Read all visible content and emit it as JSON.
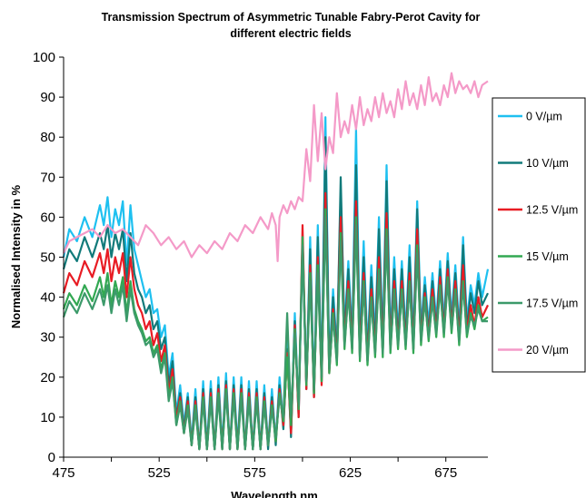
{
  "chart_data": {
    "type": "line",
    "title_line1": "Transmission Spectrum of Asymmetric Tunable Fabry-Perot Cavity for",
    "title_line2": "different electric fields",
    "xlabel": "Wavelength nm",
    "ylabel": "Normalised Intensity in %",
    "xlim": [
      475,
      697
    ],
    "ylim": [
      0,
      100
    ],
    "xticks": [
      475,
      525,
      575,
      625,
      675
    ],
    "yticks": [
      0,
      10,
      20,
      30,
      40,
      50,
      60,
      70,
      80,
      90,
      100
    ],
    "grid": false,
    "legend_position": "right",
    "series": [
      {
        "name": "0 V/µm",
        "color": "#1EC0F0",
        "x": [
          475,
          478,
          482,
          486,
          490,
          494,
          496,
          498,
          500,
          502,
          504,
          506,
          508,
          510,
          512,
          514,
          516,
          518,
          520,
          522,
          524,
          526,
          528,
          530,
          532,
          534,
          536,
          538,
          540,
          542,
          544,
          546,
          548,
          550,
          552,
          554,
          556,
          558,
          560,
          562,
          564,
          566,
          568,
          570,
          572,
          574,
          576,
          578,
          580,
          582,
          584,
          586,
          588,
          590,
          592,
          594,
          596,
          598,
          600,
          602,
          604,
          606,
          608,
          610,
          612,
          614,
          616,
          618,
          620,
          622,
          624,
          626,
          628,
          630,
          632,
          634,
          636,
          638,
          640,
          642,
          644,
          646,
          648,
          650,
          652,
          654,
          656,
          658,
          660,
          662,
          664,
          666,
          668,
          670,
          672,
          674,
          676,
          678,
          680,
          682,
          684,
          686,
          688,
          690,
          692,
          694,
          697
        ],
        "y": [
          50,
          57,
          54,
          60,
          55,
          63,
          58,
          65,
          55,
          62,
          58,
          64,
          48,
          63,
          52,
          48,
          44,
          40,
          42,
          36,
          37,
          30,
          33,
          20,
          26,
          11,
          18,
          8,
          16,
          4,
          17,
          2,
          19,
          3,
          19,
          2,
          20,
          3,
          21,
          2,
          20,
          3,
          20,
          2,
          19,
          2,
          19,
          2,
          18,
          3,
          17,
          4,
          20,
          8,
          29,
          6,
          36,
          11,
          53,
          18,
          55,
          16,
          58,
          20,
          85,
          24,
          42,
          27,
          66,
          32,
          49,
          30,
          82,
          28,
          54,
          27,
          48,
          30,
          60,
          29,
          73,
          30,
          50,
          31,
          49,
          31,
          53,
          30,
          64,
          32,
          45,
          33,
          46,
          34,
          49,
          34,
          51,
          35,
          48,
          32,
          55,
          34,
          43,
          38,
          46,
          40,
          47
        ],
        "peaks_x": [],
        "peaks_y": []
      },
      {
        "name": "10 V/µm",
        "color": "#117A7A",
        "x": [
          475,
          478,
          482,
          486,
          490,
          494,
          496,
          498,
          500,
          502,
          504,
          506,
          508,
          510,
          512,
          514,
          516,
          518,
          520,
          522,
          524,
          526,
          528,
          530,
          532,
          534,
          536,
          538,
          540,
          542,
          544,
          546,
          548,
          550,
          552,
          554,
          556,
          558,
          560,
          562,
          564,
          566,
          568,
          570,
          572,
          574,
          576,
          578,
          580,
          582,
          584,
          586,
          588,
          590,
          592,
          594,
          596,
          598,
          600,
          602,
          604,
          606,
          608,
          610,
          612,
          614,
          616,
          618,
          620,
          622,
          624,
          626,
          628,
          630,
          632,
          634,
          636,
          638,
          640,
          642,
          644,
          646,
          648,
          650,
          652,
          654,
          656,
          658,
          660,
          662,
          664,
          666,
          668,
          670,
          672,
          674,
          676,
          678,
          680,
          682,
          684,
          686,
          688,
          690,
          692,
          694,
          697
        ],
        "y": [
          47,
          52,
          49,
          55,
          50,
          56,
          52,
          58,
          50,
          56,
          52,
          57,
          44,
          56,
          46,
          42,
          40,
          36,
          38,
          32,
          34,
          27,
          30,
          18,
          24,
          10,
          16,
          7,
          15,
          3,
          15,
          2,
          17,
          2,
          17,
          2,
          18,
          2,
          19,
          2,
          18,
          2,
          18,
          2,
          17,
          2,
          17,
          2,
          16,
          2,
          15,
          3,
          18,
          7,
          27,
          5,
          34,
          10,
          55,
          17,
          52,
          15,
          55,
          19,
          80,
          22,
          40,
          25,
          70,
          30,
          47,
          28,
          73,
          26,
          50,
          25,
          45,
          28,
          57,
          27,
          69,
          28,
          47,
          29,
          47,
          29,
          50,
          28,
          62,
          30,
          43,
          31,
          44,
          32,
          47,
          32,
          49,
          33,
          46,
          30,
          53,
          32,
          41,
          36,
          44,
          38,
          41
        ]
      },
      {
        "name": "12.5 V/µm",
        "color": "#E81C24",
        "x": [
          475,
          478,
          482,
          486,
          490,
          494,
          496,
          498,
          500,
          502,
          504,
          506,
          508,
          510,
          512,
          514,
          516,
          518,
          520,
          522,
          524,
          526,
          528,
          530,
          532,
          534,
          536,
          538,
          540,
          542,
          544,
          546,
          548,
          550,
          552,
          554,
          556,
          558,
          560,
          562,
          564,
          566,
          568,
          570,
          572,
          574,
          576,
          578,
          580,
          582,
          584,
          586,
          588,
          590,
          592,
          594,
          596,
          598,
          600,
          602,
          604,
          606,
          608,
          610,
          612,
          614,
          616,
          618,
          620,
          622,
          624,
          626,
          628,
          630,
          632,
          634,
          636,
          638,
          640,
          642,
          644,
          646,
          648,
          650,
          652,
          654,
          656,
          658,
          660,
          662,
          664,
          666,
          668,
          670,
          672,
          674,
          676,
          678,
          680,
          682,
          684,
          686,
          688,
          690,
          692,
          694,
          697
        ],
        "y": [
          41,
          46,
          43,
          49,
          45,
          51,
          46,
          52,
          44,
          50,
          46,
          51,
          40,
          50,
          42,
          38,
          36,
          32,
          34,
          28,
          31,
          24,
          28,
          16,
          22,
          9,
          15,
          6,
          14,
          3,
          14,
          2,
          16,
          2,
          16,
          2,
          17,
          2,
          18,
          2,
          17,
          2,
          17,
          2,
          16,
          2,
          16,
          2,
          15,
          3,
          14,
          4,
          17,
          8,
          26,
          6,
          33,
          10,
          58,
          17,
          48,
          15,
          50,
          18,
          66,
          21,
          37,
          24,
          60,
          28,
          44,
          27,
          64,
          25,
          46,
          24,
          42,
          26,
          50,
          26,
          61,
          27,
          44,
          28,
          44,
          28,
          46,
          27,
          57,
          29,
          41,
          30,
          42,
          31,
          45,
          31,
          47,
          32,
          44,
          29,
          48,
          31,
          38,
          33,
          40,
          35,
          38
        ]
      },
      {
        "name": "15 V/µm",
        "color": "#32A852",
        "x": [
          475,
          478,
          482,
          486,
          490,
          494,
          496,
          498,
          500,
          502,
          504,
          506,
          508,
          510,
          512,
          514,
          516,
          518,
          520,
          522,
          524,
          526,
          528,
          530,
          532,
          534,
          536,
          538,
          540,
          542,
          544,
          546,
          548,
          550,
          552,
          554,
          556,
          558,
          560,
          562,
          564,
          566,
          568,
          570,
          572,
          574,
          576,
          578,
          580,
          582,
          584,
          586,
          588,
          590,
          592,
          594,
          596,
          598,
          600,
          602,
          604,
          606,
          608,
          610,
          612,
          614,
          616,
          618,
          620,
          622,
          624,
          626,
          628,
          630,
          632,
          634,
          636,
          638,
          640,
          642,
          644,
          646,
          648,
          650,
          652,
          654,
          656,
          658,
          660,
          662,
          664,
          666,
          668,
          670,
          672,
          674,
          676,
          678,
          680,
          682,
          684,
          686,
          688,
          690,
          692,
          694,
          697
        ],
        "y": [
          37,
          41,
          38,
          43,
          39,
          45,
          40,
          46,
          38,
          44,
          40,
          45,
          36,
          44,
          37,
          34,
          32,
          29,
          30,
          26,
          28,
          22,
          26,
          15,
          20,
          8,
          14,
          6,
          13,
          3,
          13,
          2,
          15,
          2,
          15,
          2,
          16,
          2,
          17,
          2,
          16,
          2,
          16,
          2,
          15,
          2,
          15,
          2,
          14,
          3,
          13,
          4,
          16,
          9,
          25,
          8,
          32,
          12,
          55,
          18,
          46,
          16,
          48,
          19,
          62,
          21,
          36,
          23,
          56,
          27,
          42,
          26,
          60,
          24,
          44,
          23,
          40,
          25,
          47,
          25,
          57,
          26,
          42,
          27,
          42,
          27,
          44,
          26,
          53,
          28,
          40,
          29,
          40,
          30,
          43,
          30,
          45,
          31,
          42,
          28,
          44,
          30,
          36,
          32,
          38,
          34,
          35
        ]
      },
      {
        "name": "17.5 V/µm",
        "color": "#3C9A6A",
        "x": [
          475,
          478,
          482,
          486,
          490,
          494,
          496,
          498,
          500,
          502,
          504,
          506,
          508,
          510,
          512,
          514,
          516,
          518,
          520,
          522,
          524,
          526,
          528,
          530,
          532,
          534,
          536,
          538,
          540,
          542,
          544,
          546,
          548,
          550,
          552,
          554,
          556,
          558,
          560,
          562,
          564,
          566,
          568,
          570,
          572,
          574,
          576,
          578,
          580,
          582,
          584,
          586,
          588,
          590,
          592,
          594,
          596,
          598,
          600,
          602,
          604,
          606,
          608,
          610,
          612,
          614,
          616,
          618,
          620,
          622,
          624,
          626,
          628,
          630,
          632,
          634,
          636,
          638,
          640,
          642,
          644,
          646,
          648,
          650,
          652,
          654,
          656,
          658,
          660,
          662,
          664,
          666,
          668,
          670,
          672,
          674,
          676,
          678,
          680,
          682,
          684,
          686,
          688,
          690,
          692,
          694,
          697
        ],
        "y": [
          35,
          39,
          36,
          41,
          37,
          42,
          38,
          43,
          36,
          42,
          38,
          43,
          34,
          42,
          36,
          33,
          31,
          28,
          29,
          25,
          27,
          21,
          25,
          14,
          19,
          8,
          13,
          6,
          12,
          3,
          12,
          2,
          14,
          2,
          14,
          2,
          15,
          2,
          16,
          2,
          15,
          2,
          15,
          2,
          14,
          2,
          14,
          2,
          13,
          3,
          12,
          5,
          15,
          10,
          36,
          10,
          31,
          13,
          53,
          19,
          44,
          17,
          46,
          20,
          60,
          22,
          35,
          24,
          54,
          28,
          41,
          27,
          58,
          25,
          43,
          24,
          39,
          26,
          46,
          26,
          55,
          27,
          41,
          28,
          41,
          28,
          43,
          27,
          51,
          29,
          39,
          30,
          39,
          31,
          42,
          31,
          44,
          32,
          41,
          29,
          43,
          31,
          35,
          33,
          37,
          34,
          34
        ]
      },
      {
        "name": "20 V/µm",
        "color": "#F49AC8",
        "x": [
          475,
          478,
          482,
          486,
          490,
          494,
          498,
          502,
          506,
          510,
          514,
          518,
          522,
          526,
          530,
          534,
          538,
          542,
          546,
          550,
          554,
          558,
          562,
          566,
          570,
          574,
          578,
          582,
          584,
          586,
          587,
          588,
          590,
          592,
          594,
          596,
          598,
          600,
          602,
          604,
          606,
          608,
          610,
          612,
          614,
          616,
          618,
          620,
          622,
          624,
          626,
          628,
          630,
          632,
          634,
          636,
          638,
          640,
          642,
          644,
          646,
          648,
          650,
          652,
          654,
          656,
          658,
          660,
          662,
          664,
          666,
          668,
          670,
          672,
          674,
          676,
          678,
          680,
          682,
          684,
          686,
          688,
          690,
          692,
          694,
          697
        ],
        "y": [
          51,
          54,
          55,
          56,
          57,
          55,
          58,
          56,
          57,
          55,
          53,
          58,
          56,
          53,
          55,
          52,
          54,
          50,
          53,
          51,
          54,
          52,
          56,
          54,
          58,
          56,
          60,
          57,
          61,
          58,
          49,
          60,
          63,
          61,
          64,
          62,
          65,
          64,
          77,
          69,
          88,
          74,
          86,
          72,
          80,
          76,
          91,
          80,
          84,
          81,
          88,
          82,
          90,
          83,
          87,
          84,
          90,
          85,
          91,
          86,
          89,
          85,
          92,
          87,
          94,
          88,
          91,
          87,
          93,
          88,
          95,
          89,
          91,
          88,
          93,
          90,
          96,
          91,
          94,
          92,
          93,
          91,
          94,
          90,
          93,
          94
        ]
      }
    ]
  }
}
